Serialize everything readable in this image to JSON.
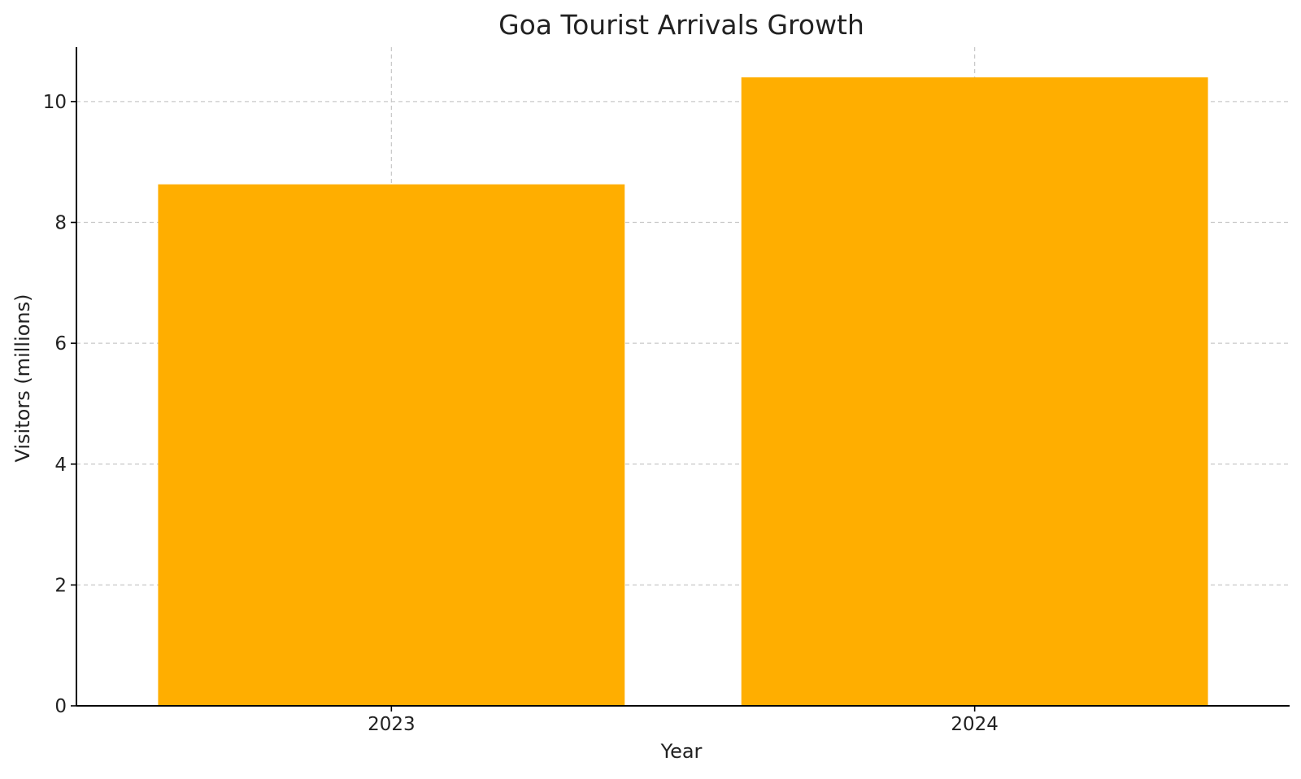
{
  "chart_data": {
    "type": "bar",
    "title": "Goa Tourist Arrivals Growth",
    "xlabel": "Year",
    "ylabel": "Visitors (millions)",
    "categories": [
      "2023",
      "2024"
    ],
    "values": [
      8.63,
      10.4
    ],
    "ylim": [
      0,
      10.9
    ],
    "yticks": [
      0,
      2,
      4,
      6,
      8,
      10
    ],
    "grid": true,
    "colors": {
      "bar": "#FFAE00"
    }
  }
}
